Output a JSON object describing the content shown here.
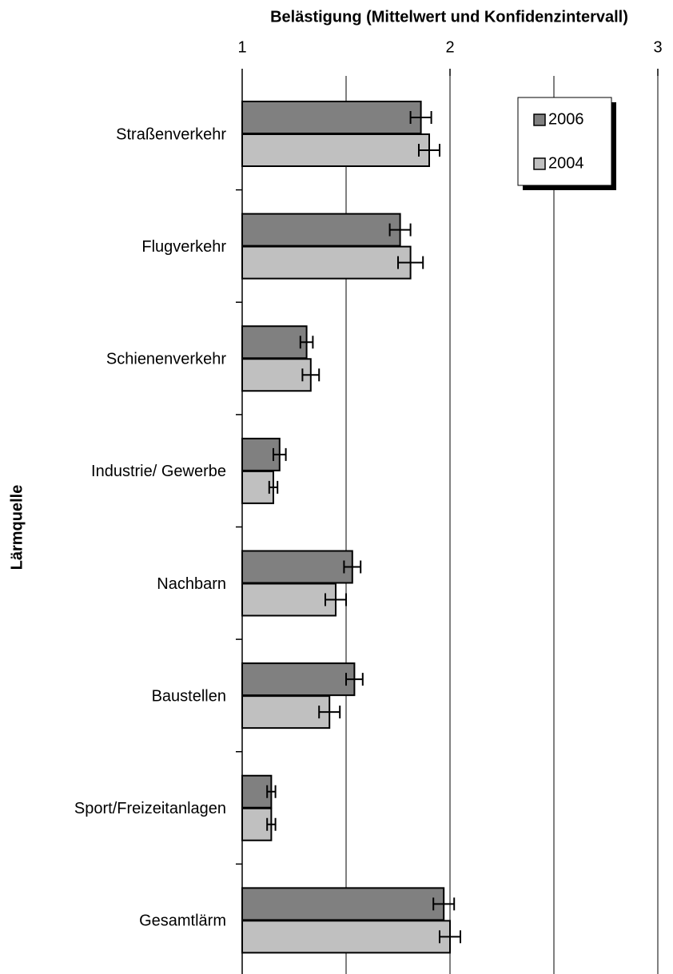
{
  "chart_data": {
    "type": "hbar",
    "title": "Belästigung (Mittelwert und Konfidenzintervall)",
    "y_label": "Lärmquelle",
    "categories": [
      "Straßenverkehr",
      "Flugverkehr",
      "Schienenverkehr",
      "Industrie/ Gewerbe",
      "Nachbarn",
      "Baustellen",
      "Sport/Freizeitanlagen",
      "Gesamtlärm"
    ],
    "series": [
      {
        "name": "2006",
        "color": "#808080",
        "values": [
          1.86,
          1.76,
          1.31,
          1.18,
          1.53,
          1.54,
          1.14,
          1.97
        ],
        "errors": [
          0.05,
          0.05,
          0.03,
          0.03,
          0.04,
          0.04,
          0.02,
          0.05
        ]
      },
      {
        "name": "2004",
        "color": "#c0c0c0",
        "values": [
          1.9,
          1.81,
          1.33,
          1.15,
          1.45,
          1.42,
          1.14,
          2.0
        ],
        "errors": [
          0.05,
          0.06,
          0.04,
          0.02,
          0.05,
          0.05,
          0.02,
          0.05
        ]
      }
    ],
    "xlim": [
      1,
      3
    ],
    "xticks": [
      1,
      2,
      3
    ],
    "minor_xticks": [
      1.5,
      2.5
    ],
    "grid": true,
    "legend": "top-right"
  }
}
